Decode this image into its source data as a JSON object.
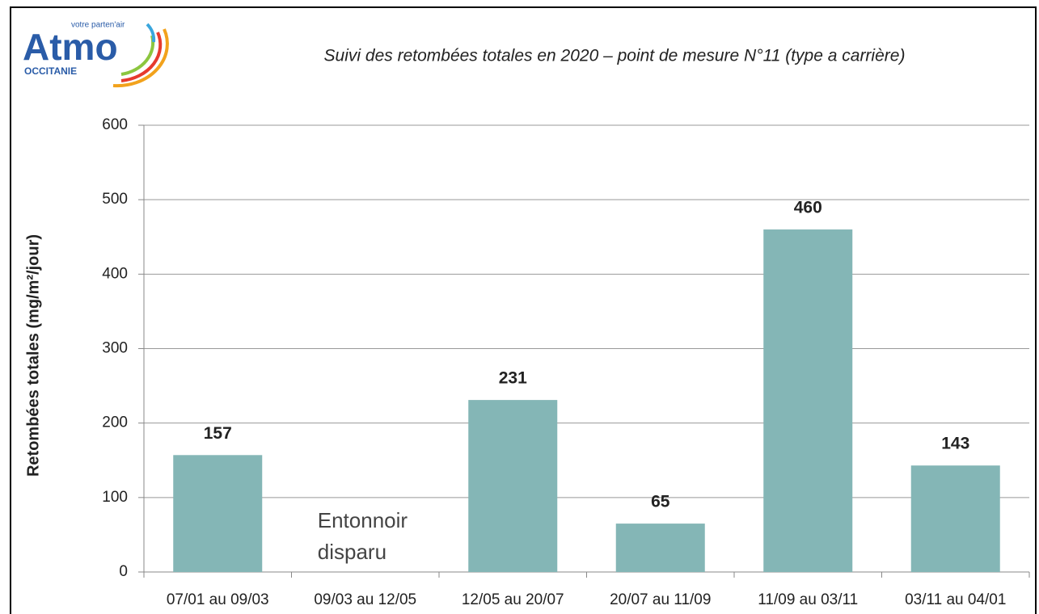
{
  "logo": {
    "name": "Atmo",
    "tagline": "votre parten'air",
    "region": "OCCITANIE"
  },
  "chart_data": {
    "type": "bar",
    "title": "Suivi des retombées totales en 2020 – point de mesure N°11 (type a carrière)",
    "y_label": "Retombées totales (mg/m²/jour)",
    "categories": [
      "07/01 au 09/03",
      "09/03 au 12/05",
      "12/05 au 20/07",
      "20/07 au 11/09",
      "11/09 au 03/11",
      "03/11 au 04/01"
    ],
    "values": [
      157,
      null,
      231,
      65,
      460,
      143
    ],
    "color": "#84b6b6",
    "annotation": {
      "category": 1,
      "lines": [
        "Entonnoir",
        "disparu"
      ]
    },
    "ylim": [
      0,
      600
    ],
    "yticks": [
      0,
      100,
      200,
      300,
      400,
      500,
      600
    ],
    "grid": true
  }
}
